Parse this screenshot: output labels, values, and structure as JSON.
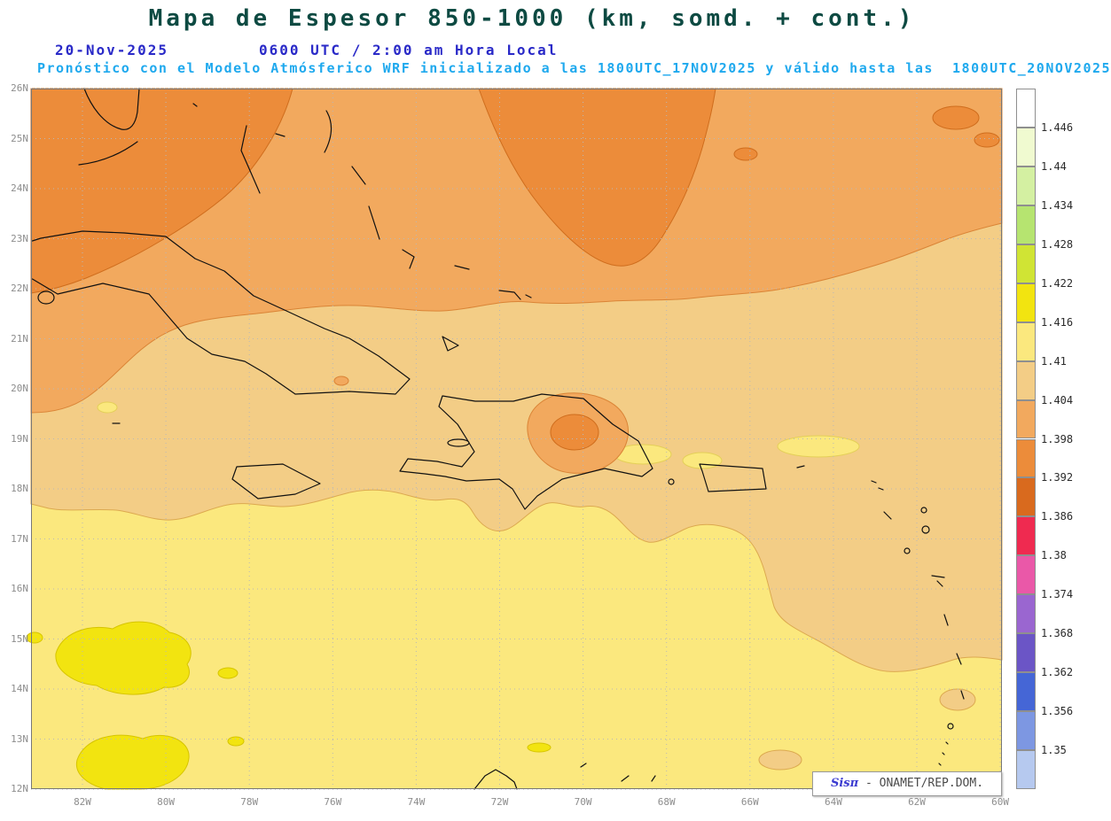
{
  "header": {
    "title": "Mapa de Espesor 850-1000 (km, somd. + cont.)",
    "date": "20-Nov-2025",
    "time": "0600 UTC / 2:00 am Hora Local",
    "forecast": "Pronóstico con el Modelo Atmósferico WRF inicializado a las 1800UTC_17NOV2025 y válido hasta las  1800UTC_20NOV2025"
  },
  "map": {
    "lat_labels": [
      "26N",
      "25N",
      "24N",
      "23N",
      "22N",
      "21N",
      "20N",
      "19N",
      "18N",
      "17N",
      "16N",
      "15N",
      "14N",
      "13N",
      "12N"
    ],
    "lon_labels": [
      "82W",
      "80W",
      "78W",
      "76W",
      "74W",
      "72W",
      "70W",
      "68W",
      "66W",
      "64W",
      "62W",
      "60W"
    ],
    "grid_color": "#b8b8b8",
    "coast_color": "#111111",
    "frame_color": "#777777"
  },
  "colorbar": {
    "values": [
      "1.446",
      "1.44",
      "1.434",
      "1.428",
      "1.422",
      "1.416",
      "1.41",
      "1.404",
      "1.398",
      "1.392",
      "1.386",
      "1.38",
      "1.374",
      "1.368",
      "1.362",
      "1.356",
      "1.35"
    ],
    "colors": [
      "#ffffff",
      "#f0fad0",
      "#d4f0a2",
      "#b6e470",
      "#d0e434",
      "#f2e410",
      "#fbe87e",
      "#f3cd86",
      "#f2a95e",
      "#ec8c3a",
      "#d96a1e",
      "#ef2a50",
      "#ea58a8",
      "#9a66d0",
      "#6b55c6",
      "#4566d6",
      "#7d97e2",
      "#b6c9ef"
    ]
  },
  "regions": {
    "base": {
      "fill": "#fbe87e",
      "edge": "#e4cf58"
    },
    "tan": {
      "fill": "#f3cd86",
      "edge": "#dca94f"
    },
    "orange": {
      "fill": "#f2a95e",
      "edge": "#da8436"
    },
    "dark_orange": {
      "fill": "#ec8c3a",
      "edge": "#cf6d1d"
    },
    "bright_yellow": {
      "fill": "#f2e410",
      "edge": "#d6c400"
    }
  },
  "legend": {
    "brand": "Sisπ",
    "org": " - ONAMET/REP.DOM."
  }
}
